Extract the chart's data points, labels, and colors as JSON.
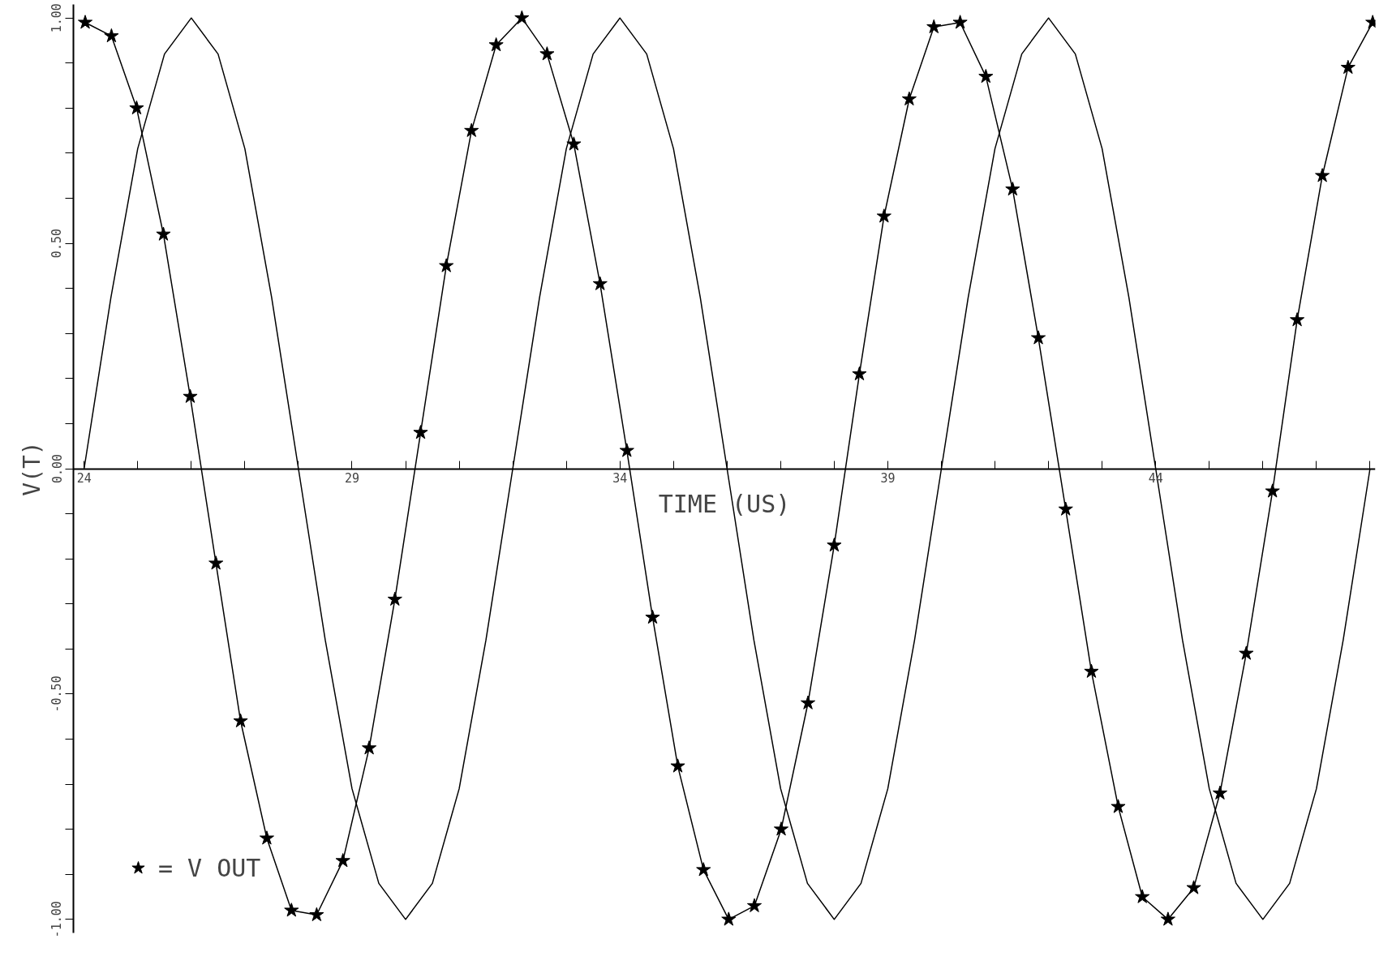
{
  "chart_data": {
    "type": "line",
    "xlabel": "TIME (US)",
    "ylabel": "V(T)",
    "xlim": [
      23.8,
      48.1
    ],
    "ylim": [
      -1.03,
      1.03
    ],
    "xticks": [
      24,
      {
        "value": 25,
        "label": null
      },
      {
        "value": 26,
        "label": null
      },
      {
        "value": 27,
        "label": null
      },
      {
        "value": 28,
        "label": null
      },
      29,
      {
        "value": 30,
        "label": null
      },
      {
        "value": 31,
        "label": null
      },
      {
        "value": 32,
        "label": null
      },
      {
        "value": 33,
        "label": null
      },
      34,
      {
        "value": 35,
        "label": null
      },
      {
        "value": 36,
        "label": null
      },
      {
        "value": 37,
        "label": null
      },
      {
        "value": 38,
        "label": null
      },
      39,
      {
        "value": 40,
        "label": null
      },
      {
        "value": 41,
        "label": null
      },
      {
        "value": 42,
        "label": null
      },
      {
        "value": 43,
        "label": null
      },
      44,
      {
        "value": 45,
        "label": null
      },
      {
        "value": 46,
        "label": null
      },
      {
        "value": 47,
        "label": null
      },
      {
        "value": 48,
        "label": null
      }
    ],
    "yticks": [
      {
        "value": -1,
        "label": "-1.00"
      },
      {
        "value": -0.9,
        "label": null
      },
      {
        "value": -0.8,
        "label": null
      },
      {
        "value": -0.7,
        "label": null
      },
      {
        "value": -0.6,
        "label": null
      },
      {
        "value": -0.5,
        "label": "-0.50"
      },
      {
        "value": -0.4,
        "label": null
      },
      {
        "value": -0.3,
        "label": null
      },
      {
        "value": -0.2,
        "label": null
      },
      {
        "value": -0.1,
        "label": null
      },
      {
        "value": 0,
        "label": "0.00"
      },
      {
        "value": 0.1,
        "label": null
      },
      {
        "value": 0.2,
        "label": null
      },
      {
        "value": 0.3,
        "label": null
      },
      {
        "value": 0.4,
        "label": null
      },
      {
        "value": 0.5,
        "label": "0.50"
      },
      {
        "value": 0.6,
        "label": null
      },
      {
        "value": 0.7,
        "label": null
      },
      {
        "value": 0.8,
        "label": null
      },
      {
        "value": 0.9,
        "label": null
      },
      {
        "value": 1,
        "label": "1.00"
      }
    ],
    "grid": false,
    "legend": "bottom left",
    "line_style": "solid",
    "series": [
      {
        "color": "#000000",
        "marker": "none",
        "x": [
          24,
          24.5,
          25,
          25.5,
          26,
          26.5,
          27,
          27.5,
          28,
          28.5,
          29,
          29.5,
          30,
          30.5,
          31,
          31.5,
          32,
          32.5,
          33,
          33.5,
          34,
          34.5,
          35,
          35.5,
          36,
          36.5,
          37,
          37.5,
          38,
          38.5,
          39,
          39.5,
          40,
          40.5,
          41,
          41.5,
          42,
          42.5,
          43,
          43.5,
          44,
          44.5,
          45,
          45.5,
          46,
          46.5,
          47,
          47.5,
          48
        ],
        "values": [
          0,
          0.38,
          0.71,
          0.92,
          1,
          0.92,
          0.71,
          0.38,
          0,
          -0.38,
          -0.71,
          -0.92,
          -1,
          -0.92,
          -0.71,
          -0.38,
          0,
          0.38,
          0.71,
          0.92,
          1,
          0.92,
          0.71,
          0.38,
          0,
          -0.38,
          -0.71,
          -0.92,
          -1,
          -0.92,
          -0.71,
          -0.38,
          0,
          0.38,
          0.71,
          0.92,
          1,
          0.92,
          0.71,
          0.38,
          0,
          -0.38,
          -0.71,
          -0.92,
          -1,
          -0.92,
          -0.71,
          -0.38,
          0
        ]
      },
      {
        "name": "= V OUT",
        "color": "#000000",
        "marker": "star",
        "x": [
          24.02,
          24.51,
          24.98,
          25.48,
          25.98,
          26.46,
          26.92,
          27.41,
          27.87,
          28.34,
          28.83,
          29.32,
          29.8,
          30.28,
          30.76,
          31.23,
          31.69,
          32.17,
          32.64,
          33.14,
          33.63,
          34.13,
          34.61,
          35.08,
          35.56,
          36.03,
          36.51,
          37.01,
          37.51,
          38.0,
          38.47,
          38.93,
          39.4,
          39.86,
          40.35,
          40.83,
          41.33,
          41.81,
          42.32,
          42.8,
          43.3,
          43.75,
          44.23,
          44.71,
          45.2,
          45.69,
          46.18,
          46.64,
          47.11,
          47.59,
          48.05
        ],
        "values": [
          0.99,
          0.96,
          0.8,
          0.52,
          0.16,
          -0.21,
          -0.56,
          -0.82,
          -0.98,
          -0.99,
          -0.87,
          -0.62,
          -0.29,
          0.08,
          0.45,
          0.75,
          0.94,
          1.0,
          0.92,
          0.72,
          0.41,
          0.04,
          -0.33,
          -0.66,
          -0.89,
          -1.0,
          -0.97,
          -0.8,
          -0.52,
          -0.17,
          0.21,
          0.56,
          0.82,
          0.98,
          0.99,
          0.87,
          0.62,
          0.29,
          -0.09,
          -0.45,
          -0.75,
          -0.95,
          -1.0,
          -0.93,
          -0.72,
          -0.41,
          -0.05,
          0.33,
          0.65,
          0.89,
          0.99
        ]
      }
    ]
  }
}
